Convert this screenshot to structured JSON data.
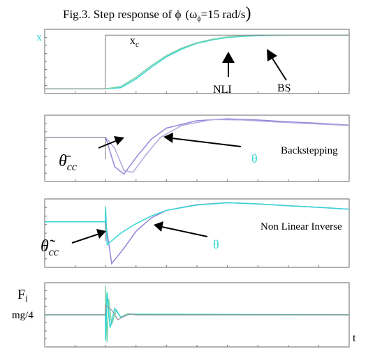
{
  "figure_title": {
    "prefix": "Fig.3. Step response of ",
    "phi": "ϕ",
    "paren_open": "(ω",
    "paren_sub": "ϕ",
    "paren_rest": "=15 rad/s",
    "paren_close": ")"
  },
  "colors": {
    "cyan": "#33d6d6",
    "teal_green": "#7fd3a6",
    "lavender": "#8d88d8",
    "light_purple": "#b0a8e0",
    "gray": "#909090",
    "black": "#000000"
  },
  "labels": {
    "x_axis_t": "t",
    "panel1_x": "x",
    "panel1_xc_main": "x",
    "panel1_xc_sub": "c",
    "panel1_nli": "NLI",
    "panel1_bs": "BS",
    "panel2_theta_main": "θ̄",
    "panel2_theta_sub": "cc",
    "panel2_theta": "θ",
    "panel2_method": "Backstepping",
    "panel3_theta_main": "θ̃",
    "panel3_theta_sub": "cc",
    "panel3_theta": "θ",
    "panel3_method": "Non Linear Inverse",
    "panel4_f_main": "F",
    "panel4_f_sub": "i",
    "panel4_mg": "mg/4"
  },
  "chart_data": [
    {
      "type": "line",
      "panel": "x position",
      "xlim": [
        0,
        10
      ],
      "ylim": [
        0,
        1.1
      ],
      "step_time": 2,
      "series": [
        {
          "name": "x",
          "color": "cyan",
          "x": [
            0,
            1.99,
            2,
            2.5,
            3,
            3.5,
            4,
            4.5,
            5,
            5.5,
            6,
            6.5,
            7,
            8,
            9,
            10
          ],
          "y": [
            0.08,
            0.08,
            0.08,
            0.1,
            0.25,
            0.45,
            0.63,
            0.76,
            0.86,
            0.92,
            0.96,
            0.98,
            0.99,
            1.0,
            1.0,
            1.0
          ]
        },
        {
          "color": "teal_green",
          "x": [
            0,
            1.99,
            2,
            2.5,
            3,
            3.5,
            4,
            4.5,
            5,
            5.5,
            6,
            6.5,
            7,
            8,
            9,
            10
          ],
          "y": [
            0.08,
            0.08,
            0.08,
            0.12,
            0.28,
            0.48,
            0.65,
            0.78,
            0.87,
            0.93,
            0.97,
            0.99,
            1.0,
            1.0,
            1.0,
            1.0
          ]
        },
        {
          "name": "x_c",
          "color": "gray",
          "x": [
            0,
            1.99,
            2,
            10
          ],
          "y": [
            0.08,
            0.08,
            1.0,
            1.0
          ]
        }
      ]
    },
    {
      "type": "line",
      "panel": "theta backstepping",
      "xlim": [
        0,
        10
      ],
      "ylim": [
        -1.2,
        0.6
      ],
      "series": [
        {
          "name": "θ̄cc",
          "color": "lavender",
          "x": [
            0,
            1.99,
            2,
            2.3,
            2.6,
            3,
            3.5,
            4,
            5,
            6,
            7,
            8,
            9,
            10
          ],
          "y": [
            0,
            0,
            0,
            -0.8,
            -1.0,
            -0.55,
            -0.05,
            0.25,
            0.45,
            0.5,
            0.47,
            0.42,
            0.38,
            0.33
          ]
        },
        {
          "name": "θ",
          "color": "light_purple",
          "x": [
            0,
            1.99,
            2,
            2.3,
            2.6,
            2.9,
            3.3,
            3.8,
            4.5,
            5.5,
            6.5,
            7.5,
            8.5,
            10
          ],
          "y": [
            0,
            0,
            0,
            -0.3,
            -0.9,
            -0.95,
            -0.5,
            0.0,
            0.32,
            0.48,
            0.47,
            0.42,
            0.38,
            0.32
          ]
        },
        {
          "color": "gray",
          "x": [
            0,
            1.99,
            2
          ],
          "y": [
            0,
            0,
            -0.6
          ]
        }
      ]
    },
    {
      "type": "line",
      "panel": "theta nonlinear inverse",
      "xlim": [
        0,
        10
      ],
      "ylim": [
        -1.2,
        0.6
      ],
      "series": [
        {
          "name": "θ̃cc",
          "color": "gray",
          "x": [
            0,
            1.99,
            2
          ],
          "y": [
            0,
            0,
            -0.5
          ]
        },
        {
          "name": "θ",
          "color": "lavender",
          "x": [
            0,
            1.99,
            2,
            2.2,
            2.6,
            3,
            3.5,
            4,
            5,
            6,
            7,
            8,
            9,
            10
          ],
          "y": [
            0,
            0,
            0,
            -1.1,
            -0.7,
            -0.25,
            0.1,
            0.3,
            0.45,
            0.5,
            0.47,
            0.42,
            0.38,
            0.33
          ]
        },
        {
          "color": "cyan",
          "x": [
            0,
            1.99,
            2,
            2.05,
            2.2,
            2.5,
            3,
            3.5,
            4,
            5,
            6,
            7,
            8,
            9,
            10
          ],
          "y": [
            0,
            0,
            0.4,
            -0.6,
            -0.5,
            -0.3,
            -0.05,
            0.15,
            0.3,
            0.44,
            0.5,
            0.47,
            0.42,
            0.38,
            0.33
          ]
        }
      ]
    },
    {
      "type": "line",
      "panel": "motor forces",
      "xlim": [
        0,
        10
      ],
      "ylim": [
        -1,
        1
      ],
      "series": [
        {
          "color": "teal_green",
          "x": [
            0,
            1.99,
            2,
            2.05,
            2.1,
            2.2,
            2.35,
            2.5,
            2.7,
            3,
            10
          ],
          "y": [
            0,
            0,
            0.9,
            -0.85,
            0.5,
            -0.3,
            0.15,
            -0.08,
            0.03,
            0,
            0
          ]
        },
        {
          "color": "cyan",
          "x": [
            0,
            1.99,
            2,
            2.05,
            2.15,
            2.3,
            2.5,
            2.8,
            10
          ],
          "y": [
            0,
            0,
            -0.8,
            0.7,
            -0.4,
            0.2,
            -0.08,
            0.02,
            0
          ]
        },
        {
          "color": "gray",
          "x": [
            0,
            1.99,
            2,
            2.2,
            2.4,
            2.6,
            2.8,
            3,
            10
          ],
          "y": [
            0,
            0,
            0.3,
            0.15,
            -0.15,
            -0.05,
            0.03,
            0,
            0
          ]
        }
      ]
    }
  ]
}
